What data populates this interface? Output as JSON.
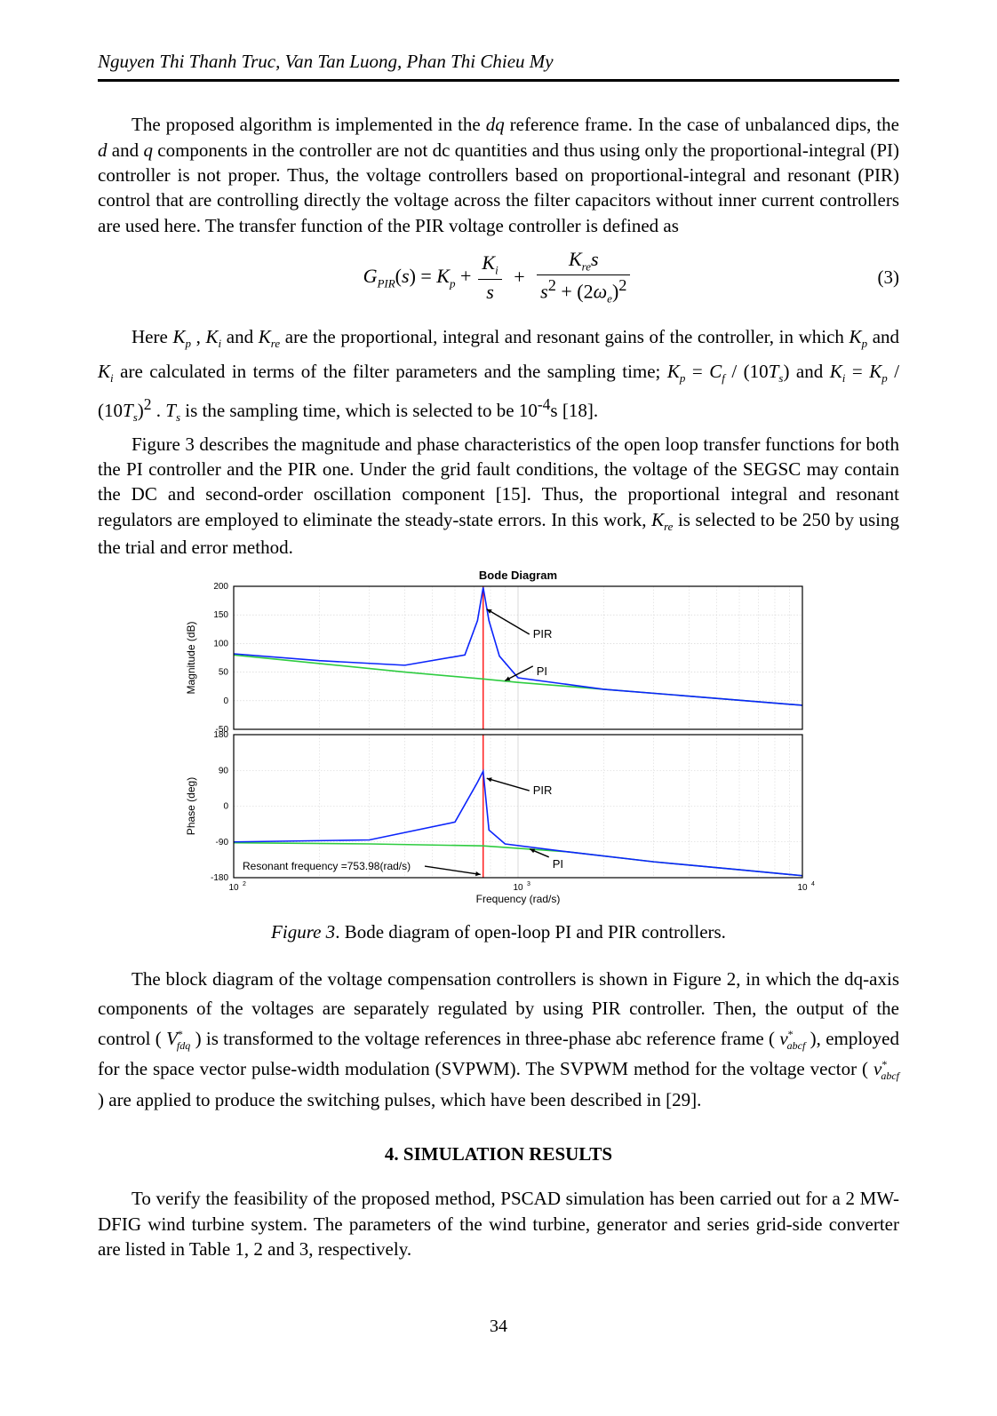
{
  "running_head": "Nguyen Thi Thanh Truc, Van Tan Luong, Phan Thi Chieu My",
  "para1": "The proposed algorithm is implemented in the dq reference frame. In the case of unbalanced dips, the d and q components in the controller are not dc quantities and thus using only the proportional-integral (PI) controller is not proper. Thus, the voltage controllers based on proportional-integral and resonant (PIR) control that are controlling directly the voltage across the filter capacitors without inner current controllers are used here. The transfer function of the PIR voltage controller is defined as",
  "eq3": {
    "lhs": "G_{PIR}(s) = K_p +",
    "frac1_num": "K_i",
    "frac1_den": "s",
    "plus": "+",
    "frac2_num": "K_{re} s",
    "frac2_den": "s^2 + (2ω_e)^2",
    "number": "(3)"
  },
  "para2a": "Here K_p , K_i and K_{re} are the proportional, integral and resonant gains of the controller, in which K_p and K_i are calculated in terms of the filter parameters and the sampling time; K_p = C_f / (10T_s) and K_i = K_p / (10T_s)^2 . T_s is the sampling time, which is selected to be 10^{-4}s [18].",
  "para3": "Figure 3 describes the magnitude and phase characteristics of the open loop transfer functions for both the PI controller and the PIR one. Under the grid fault conditions, the voltage of the SEGSC may contain the DC and second-order oscillation component [15]. Thus, the proportional integral and resonant regulators are employed to eliminate the steady-state errors. In this work, K_{re} is selected to be 250 by using the trial and error method.",
  "figure3": {
    "title": "Bode Diagram",
    "x_label": "Frequency  (rad/s)",
    "y_label_top": "Magnitude (dB)",
    "y_label_bot": "Phase (deg)",
    "mag_ylim": [
      -50,
      200
    ],
    "mag_yticks": [
      -50,
      0,
      50,
      100,
      150,
      200
    ],
    "phase_ylim": [
      -180,
      180
    ],
    "phase_yticks": [
      -180,
      -90,
      0,
      90,
      180
    ],
    "x_min": 100,
    "x_max": 10000,
    "x_ticks_major": [
      100,
      1000,
      10000
    ],
    "x_tick_labels": [
      "10^2",
      "10^3",
      "10^4"
    ],
    "resonant_freq_rads": 753.98,
    "resonant_text": "Resonant frequency =753.98(rad/s)",
    "label_pir": "PIR",
    "label_pi": "PI",
    "colors": {
      "pi": "#2ecc40",
      "pir": "#0b24fb",
      "resonant_line": "#ff0000",
      "grid": "#cfcfcf",
      "arrow": "#000000"
    },
    "curves": {
      "mag_pi": [
        [
          100,
          80
        ],
        [
          200,
          65
        ],
        [
          400,
          50
        ],
        [
          753.98,
          38
        ],
        [
          1000,
          32
        ],
        [
          2000,
          20
        ],
        [
          4000,
          8
        ],
        [
          10000,
          -8
        ]
      ],
      "mag_pir": [
        [
          100,
          82
        ],
        [
          200,
          70
        ],
        [
          400,
          62
        ],
        [
          650,
          80
        ],
        [
          720,
          140
        ],
        [
          753.98,
          198
        ],
        [
          790,
          140
        ],
        [
          860,
          78
        ],
        [
          1000,
          40
        ],
        [
          2000,
          20
        ],
        [
          4000,
          8
        ],
        [
          10000,
          -8
        ]
      ],
      "phase_pi": [
        [
          100,
          -92
        ],
        [
          300,
          -95
        ],
        [
          753.98,
          -100
        ],
        [
          1500,
          -115
        ],
        [
          3000,
          -140
        ],
        [
          6000,
          -160
        ],
        [
          10000,
          -175
        ]
      ],
      "phase_pir": [
        [
          100,
          -90
        ],
        [
          300,
          -85
        ],
        [
          600,
          -40
        ],
        [
          720,
          60
        ],
        [
          753.98,
          88
        ],
        [
          790,
          -60
        ],
        [
          900,
          -95
        ],
        [
          1500,
          -115
        ],
        [
          3000,
          -140
        ],
        [
          6000,
          -160
        ],
        [
          10000,
          -175
        ]
      ]
    }
  },
  "fig3_caption_label": "Figure 3",
  "fig3_caption_text": ". Bode diagram of open-loop PI and PIR controllers.",
  "para4": "The block diagram of the voltage compensation controllers is shown in Figure 2, in which the dq-axis components of the voltages are separately regulated by using PIR controller. Then, the output of the control ( V*_{fdq} ) is transformed to the voltage references in three-phase abc reference frame ( v*_{abcf} ), employed for the space vector pulse-width modulation (SVPWM). The SVPWM method for the voltage vector ( v*_{abcf} ) are applied to produce the switching pulses, which have been described in [29].",
  "section_title": "4. SIMULATION RESULTS",
  "para5": "To verify the feasibility of the proposed method, PSCAD simulation has been carried out for a 2 MW-DFIG wind turbine system. The parameters of the wind turbine, generator and series grid-side converter are listed in Table 1, 2 and 3, respectively.",
  "page_number": "34"
}
